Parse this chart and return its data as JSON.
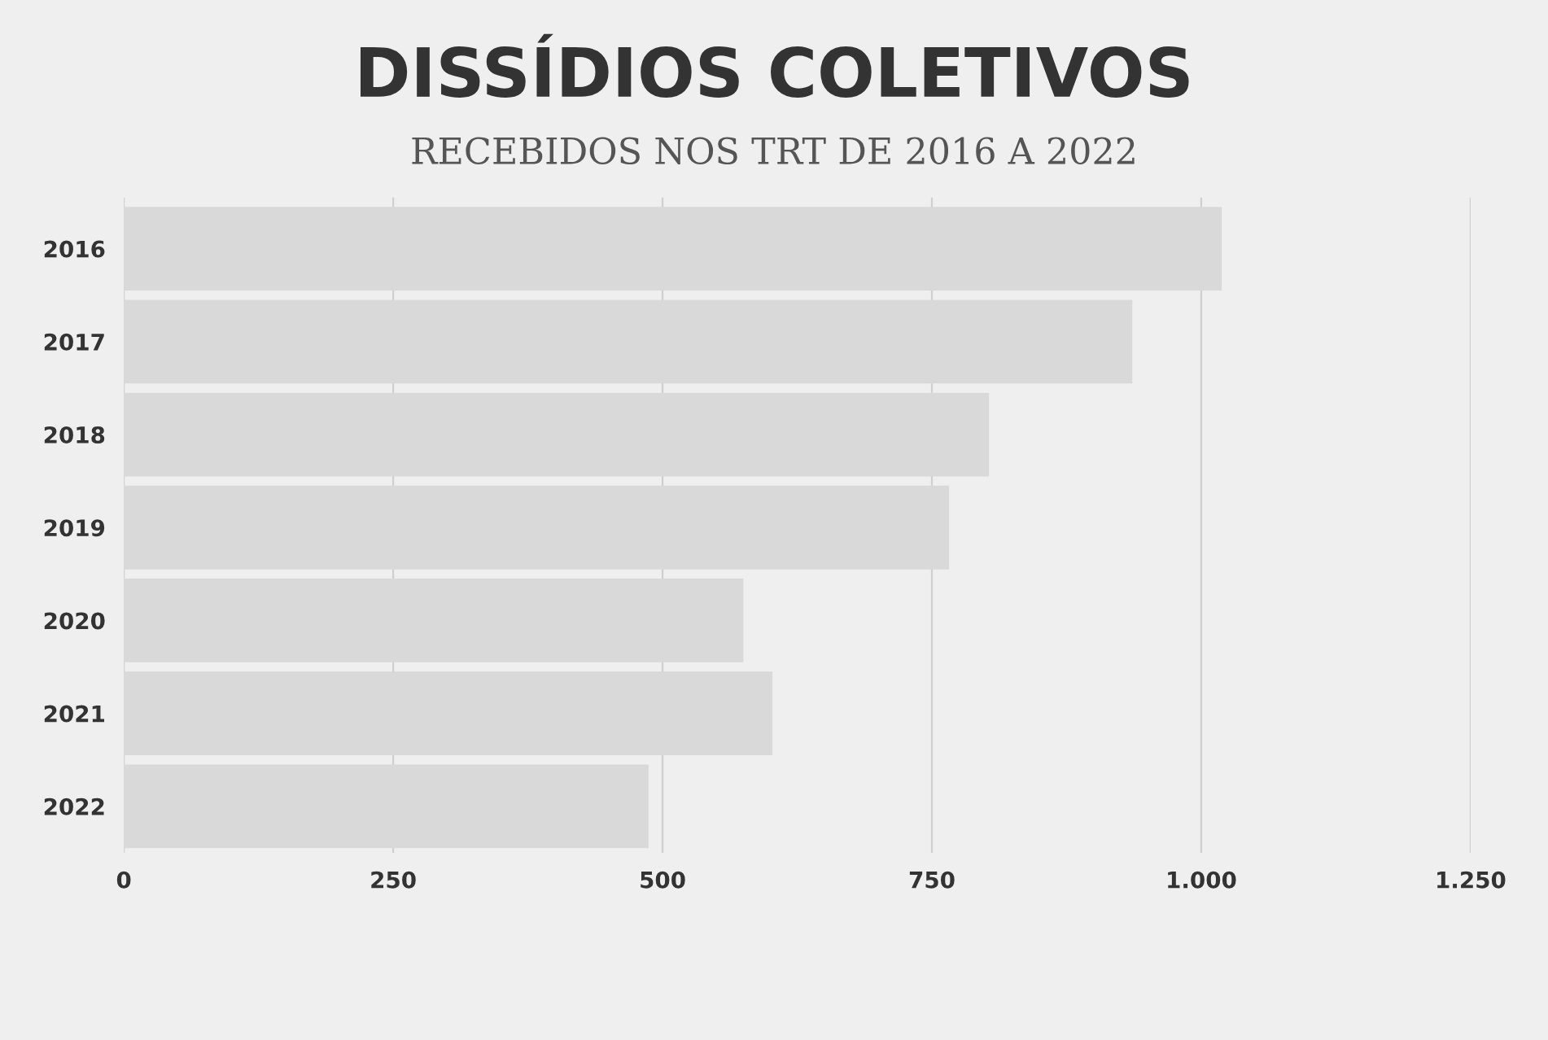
{
  "chart_data": {
    "type": "bar",
    "orientation": "horizontal",
    "title": "DISSÍDIOS COLETIVOS",
    "subtitle": "RECEBIDOS NOS TRT DE 2016 A 2022",
    "categories": [
      "2016",
      "2017",
      "2018",
      "2019",
      "2020",
      "2021",
      "2022"
    ],
    "values": [
      1019,
      936,
      803,
      766,
      575,
      602,
      487
    ],
    "color": "#d9d9d9",
    "xlim": [
      0,
      1250
    ],
    "xticks": [
      0,
      250,
      500,
      {
        "value": 750,
        "label": "750"
      },
      {
        "value": 1000,
        "label": "1.000"
      },
      {
        "value": 1250,
        "label": "1.250"
      }
    ],
    "grid": "x"
  }
}
